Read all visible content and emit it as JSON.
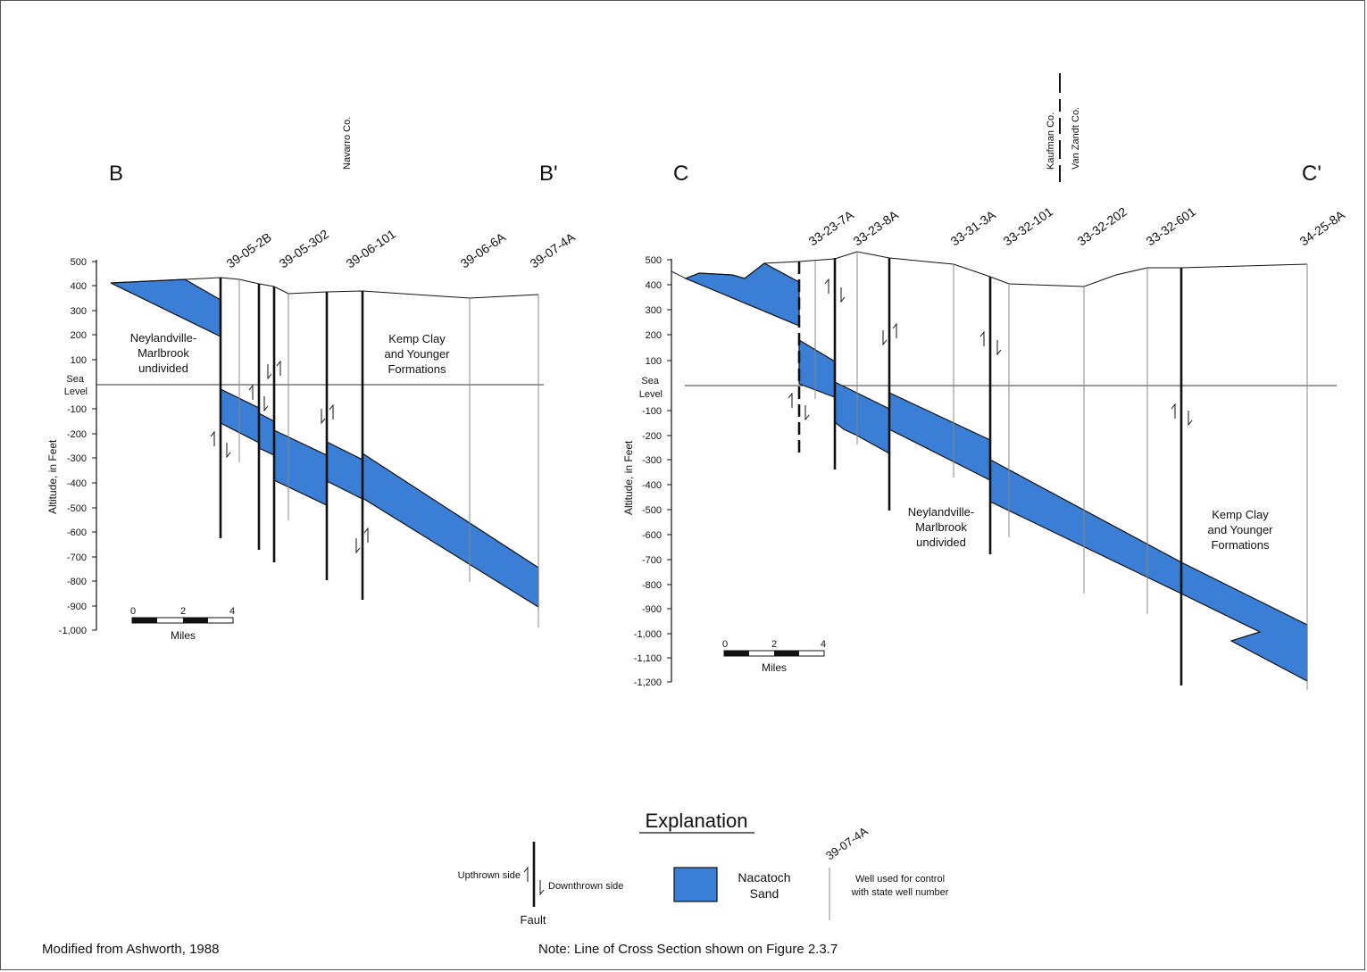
{
  "colors": {
    "sand": "#3a7fd5",
    "line": "#111111",
    "well": "#777777"
  },
  "section_b": {
    "start_label": "B",
    "end_label": "B'",
    "county": "Navarro Co.",
    "y_axis_title": "Altitude, in Feet",
    "ticks": [
      "500",
      "400",
      "300",
      "200",
      "100",
      "Sea",
      "Level",
      "-100",
      "-200",
      "-300",
      "-400",
      "-500",
      "-600",
      "-700",
      "-800",
      "-900",
      "-1,000"
    ],
    "wells": [
      "39-05-2B",
      "39-05-302",
      "39-06-101",
      "39-06-6A",
      "39-07-4A"
    ],
    "unit_left": [
      "Neylandville-",
      "Marlbrook",
      "undivided"
    ],
    "unit_right": [
      "Kemp Clay",
      "and Younger",
      "Formations"
    ],
    "scale": {
      "ticks": [
        "0",
        "2",
        "4"
      ],
      "label": "Miles"
    }
  },
  "section_c": {
    "start_label": "C",
    "end_label": "C'",
    "county_left": "Kaufman Co.",
    "county_right": "Van Zandt Co.",
    "y_axis_title": "Altitude, in Feet",
    "ticks": [
      "500",
      "400",
      "300",
      "200",
      "100",
      "Sea",
      "Level",
      "-100",
      "-200",
      "-300",
      "-400",
      "-500",
      "-600",
      "-700",
      "-800",
      "-900",
      "-1,000",
      "-1,100",
      "-1,200"
    ],
    "wells": [
      "33-23-7A",
      "33-23-8A",
      "33-31-3A",
      "33-32-101",
      "33-32-202",
      "33-32-601",
      "34-25-8A"
    ],
    "unit_mid": [
      "Neylandville-",
      "Marlbrook",
      "undivided"
    ],
    "unit_right": [
      "Kemp Clay",
      "and Younger",
      "Formations"
    ],
    "scale": {
      "ticks": [
        "0",
        "2",
        "4"
      ],
      "label": "Miles"
    }
  },
  "explanation": {
    "title": "Explanation",
    "upthrown": "Upthrown side",
    "downthrown": "Downthrown side",
    "fault": "Fault",
    "sand_line1": "Nacatoch",
    "sand_line2": "Sand",
    "sample_well": "39-07-4A",
    "well_desc1": "Well used for control",
    "well_desc2": "with state well number"
  },
  "footer": {
    "source": "Modified from Ashworth, 1988",
    "note": "Note:  Line of Cross Section shown on Figure 2.3.7"
  }
}
